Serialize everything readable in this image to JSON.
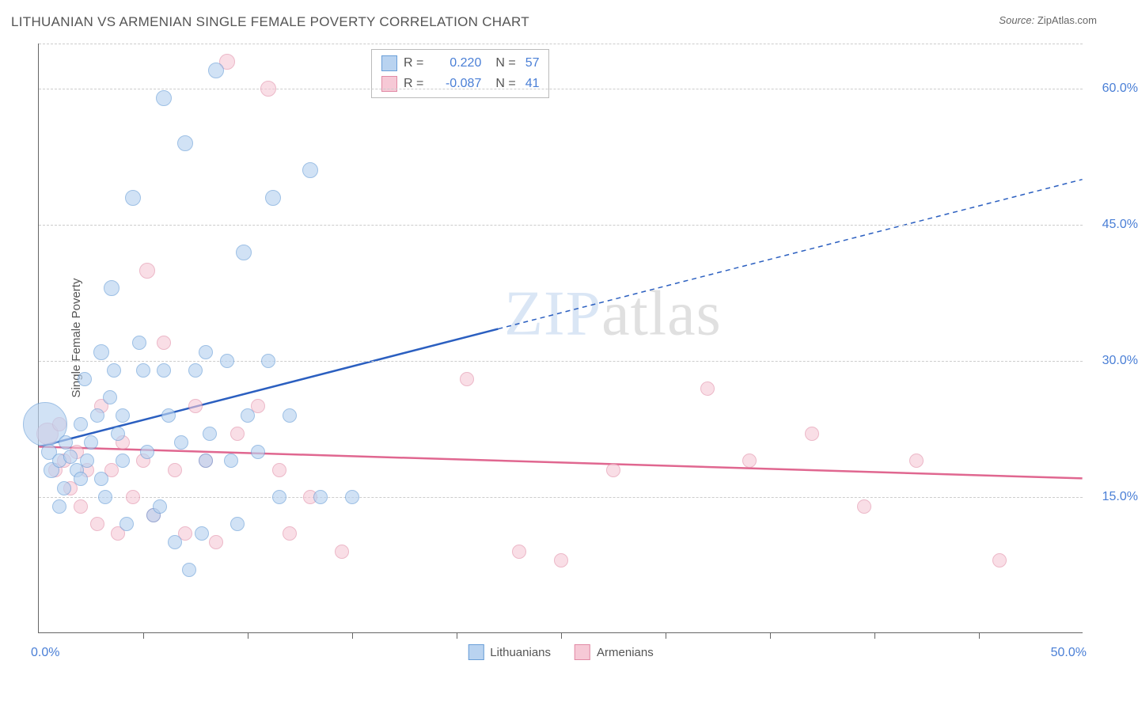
{
  "title": "LITHUANIAN VS ARMENIAN SINGLE FEMALE POVERTY CORRELATION CHART",
  "source_label": "Source:",
  "source_value": "ZipAtlas.com",
  "yaxis_title": "Single Female Poverty",
  "watermark_a": "ZIP",
  "watermark_b": "atlas",
  "xaxis": {
    "min": 0,
    "max": 50,
    "label_min": "0.0%",
    "label_max": "50.0%",
    "ticks": [
      5,
      10,
      15,
      20,
      25,
      30,
      35,
      40,
      45
    ]
  },
  "yaxis": {
    "min": 0,
    "max": 65,
    "gridlines": [
      15,
      30,
      45,
      60
    ],
    "labels": [
      "15.0%",
      "30.0%",
      "45.0%",
      "60.0%"
    ]
  },
  "series": {
    "lithuanians": {
      "label": "Lithuanians",
      "fill": "#b9d3f0",
      "stroke": "#6a9fd8",
      "fill_opacity": 0.65,
      "trend_color": "#2b5fc0",
      "R": "0.220",
      "N": "57",
      "trend": {
        "x1": 0,
        "y1": 20.5,
        "x2_solid": 22,
        "y2_solid": 33.5,
        "x2": 50,
        "y2": 50
      },
      "points": [
        {
          "x": 0.3,
          "y": 23,
          "r": 28
        },
        {
          "x": 0.5,
          "y": 20,
          "r": 10
        },
        {
          "x": 0.6,
          "y": 18,
          "r": 10
        },
        {
          "x": 1.0,
          "y": 19,
          "r": 9
        },
        {
          "x": 1.2,
          "y": 16,
          "r": 9
        },
        {
          "x": 1.3,
          "y": 21,
          "r": 9
        },
        {
          "x": 1.5,
          "y": 19.5,
          "r": 9
        },
        {
          "x": 1.8,
          "y": 18,
          "r": 9
        },
        {
          "x": 2.0,
          "y": 17,
          "r": 9
        },
        {
          "x": 2.2,
          "y": 28,
          "r": 9
        },
        {
          "x": 2.3,
          "y": 19,
          "r": 9
        },
        {
          "x": 2.5,
          "y": 21,
          "r": 9
        },
        {
          "x": 2.8,
          "y": 24,
          "r": 9
        },
        {
          "x": 3.0,
          "y": 31,
          "r": 10
        },
        {
          "x": 3.2,
          "y": 15,
          "r": 9
        },
        {
          "x": 3.4,
          "y": 26,
          "r": 9
        },
        {
          "x": 3.5,
          "y": 38,
          "r": 10
        },
        {
          "x": 3.6,
          "y": 29,
          "r": 9
        },
        {
          "x": 3.8,
          "y": 22,
          "r": 9
        },
        {
          "x": 4.0,
          "y": 19,
          "r": 9
        },
        {
          "x": 4.2,
          "y": 12,
          "r": 9
        },
        {
          "x": 4.5,
          "y": 48,
          "r": 10
        },
        {
          "x": 4.8,
          "y": 32,
          "r": 9
        },
        {
          "x": 5.0,
          "y": 29,
          "r": 9
        },
        {
          "x": 5.2,
          "y": 20,
          "r": 9
        },
        {
          "x": 5.5,
          "y": 13,
          "r": 9
        },
        {
          "x": 5.8,
          "y": 14,
          "r": 9
        },
        {
          "x": 6.0,
          "y": 59,
          "r": 10
        },
        {
          "x": 6.2,
          "y": 24,
          "r": 9
        },
        {
          "x": 6.5,
          "y": 10,
          "r": 9
        },
        {
          "x": 6.8,
          "y": 21,
          "r": 9
        },
        {
          "x": 7.0,
          "y": 54,
          "r": 10
        },
        {
          "x": 7.2,
          "y": 7,
          "r": 9
        },
        {
          "x": 7.5,
          "y": 29,
          "r": 9
        },
        {
          "x": 7.8,
          "y": 11,
          "r": 9
        },
        {
          "x": 8.0,
          "y": 31,
          "r": 9
        },
        {
          "x": 8.2,
          "y": 22,
          "r": 9
        },
        {
          "x": 8.5,
          "y": 62,
          "r": 10
        },
        {
          "x": 9.0,
          "y": 30,
          "r": 9
        },
        {
          "x": 9.2,
          "y": 19,
          "r": 9
        },
        {
          "x": 9.5,
          "y": 12,
          "r": 9
        },
        {
          "x": 9.8,
          "y": 42,
          "r": 10
        },
        {
          "x": 10.0,
          "y": 24,
          "r": 9
        },
        {
          "x": 10.5,
          "y": 20,
          "r": 9
        },
        {
          "x": 11.0,
          "y": 30,
          "r": 9
        },
        {
          "x": 11.2,
          "y": 48,
          "r": 10
        },
        {
          "x": 11.5,
          "y": 15,
          "r": 9
        },
        {
          "x": 12.0,
          "y": 24,
          "r": 9
        },
        {
          "x": 13.0,
          "y": 51,
          "r": 10
        },
        {
          "x": 13.5,
          "y": 15,
          "r": 9
        },
        {
          "x": 15.0,
          "y": 15,
          "r": 9
        },
        {
          "x": 1.0,
          "y": 14,
          "r": 9
        },
        {
          "x": 2.0,
          "y": 23,
          "r": 9
        },
        {
          "x": 3.0,
          "y": 17,
          "r": 9
        },
        {
          "x": 4.0,
          "y": 24,
          "r": 9
        },
        {
          "x": 6.0,
          "y": 29,
          "r": 9
        },
        {
          "x": 8.0,
          "y": 19,
          "r": 9
        }
      ]
    },
    "armenians": {
      "label": "Armenians",
      "fill": "#f6c9d6",
      "stroke": "#e18aa5",
      "fill_opacity": 0.6,
      "trend_color": "#e06790",
      "R": "-0.087",
      "N": "41",
      "trend": {
        "x1": 0,
        "y1": 20.5,
        "x2_solid": 50,
        "y2_solid": 17,
        "x2": 50,
        "y2": 17
      },
      "points": [
        {
          "x": 0.4,
          "y": 22,
          "r": 14
        },
        {
          "x": 0.8,
          "y": 18,
          "r": 9
        },
        {
          "x": 1.0,
          "y": 23,
          "r": 9
        },
        {
          "x": 1.2,
          "y": 19,
          "r": 9
        },
        {
          "x": 1.5,
          "y": 16,
          "r": 9
        },
        {
          "x": 1.8,
          "y": 20,
          "r": 9
        },
        {
          "x": 2.0,
          "y": 14,
          "r": 9
        },
        {
          "x": 2.3,
          "y": 18,
          "r": 9
        },
        {
          "x": 2.8,
          "y": 12,
          "r": 9
        },
        {
          "x": 3.0,
          "y": 25,
          "r": 9
        },
        {
          "x": 3.5,
          "y": 18,
          "r": 9
        },
        {
          "x": 3.8,
          "y": 11,
          "r": 9
        },
        {
          "x": 4.0,
          "y": 21,
          "r": 9
        },
        {
          "x": 4.5,
          "y": 15,
          "r": 9
        },
        {
          "x": 5.0,
          "y": 19,
          "r": 9
        },
        {
          "x": 5.2,
          "y": 40,
          "r": 10
        },
        {
          "x": 5.5,
          "y": 13,
          "r": 9
        },
        {
          "x": 6.0,
          "y": 32,
          "r": 9
        },
        {
          "x": 6.5,
          "y": 18,
          "r": 9
        },
        {
          "x": 7.0,
          "y": 11,
          "r": 9
        },
        {
          "x": 7.5,
          "y": 25,
          "r": 9
        },
        {
          "x": 8.0,
          "y": 19,
          "r": 9
        },
        {
          "x": 8.5,
          "y": 10,
          "r": 9
        },
        {
          "x": 9.0,
          "y": 63,
          "r": 10
        },
        {
          "x": 9.5,
          "y": 22,
          "r": 9
        },
        {
          "x": 10.5,
          "y": 25,
          "r": 9
        },
        {
          "x": 11.0,
          "y": 60,
          "r": 10
        },
        {
          "x": 11.5,
          "y": 18,
          "r": 9
        },
        {
          "x": 12.0,
          "y": 11,
          "r": 9
        },
        {
          "x": 13.0,
          "y": 15,
          "r": 9
        },
        {
          "x": 14.5,
          "y": 9,
          "r": 9
        },
        {
          "x": 20.5,
          "y": 28,
          "r": 9
        },
        {
          "x": 23.0,
          "y": 9,
          "r": 9
        },
        {
          "x": 25.0,
          "y": 8,
          "r": 9
        },
        {
          "x": 27.5,
          "y": 18,
          "r": 9
        },
        {
          "x": 32.0,
          "y": 27,
          "r": 9
        },
        {
          "x": 34.0,
          "y": 19,
          "r": 9
        },
        {
          "x": 37.0,
          "y": 22,
          "r": 9
        },
        {
          "x": 39.5,
          "y": 14,
          "r": 9
        },
        {
          "x": 42.0,
          "y": 19,
          "r": 9
        },
        {
          "x": 46.0,
          "y": 8,
          "r": 9
        }
      ]
    }
  }
}
